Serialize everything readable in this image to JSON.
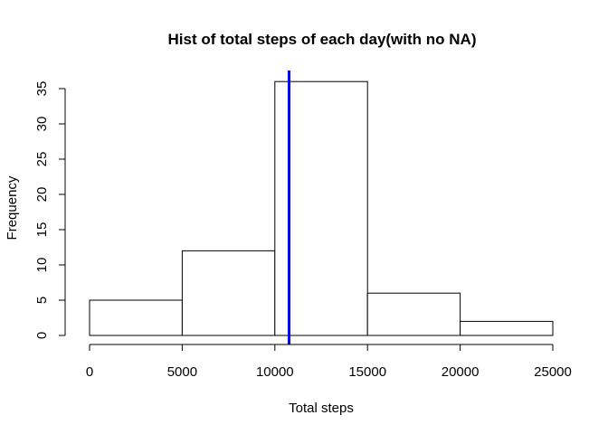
{
  "chart_data": {
    "type": "bar",
    "title": "Hist of total steps of each day(with no NA)",
    "xlabel": "Total steps",
    "ylabel": "Frequency",
    "bins": [
      {
        "from": 0,
        "to": 5000,
        "value": 5
      },
      {
        "from": 5000,
        "to": 10000,
        "value": 12
      },
      {
        "from": 10000,
        "to": 15000,
        "value": 36
      },
      {
        "from": 15000,
        "to": 20000,
        "value": 6
      },
      {
        "from": 20000,
        "to": 25000,
        "value": 2
      }
    ],
    "xlim": [
      0,
      25000
    ],
    "ylim": [
      0,
      35
    ],
    "x_ticks": [
      0,
      5000,
      10000,
      15000,
      20000,
      25000
    ],
    "y_ticks": [
      0,
      5,
      10,
      15,
      20,
      25,
      30,
      35
    ],
    "reference_line": {
      "x": 10766,
      "color": "#0000ff"
    },
    "bar_fill": "#ffffff",
    "bar_stroke": "#000000",
    "grid": false
  }
}
